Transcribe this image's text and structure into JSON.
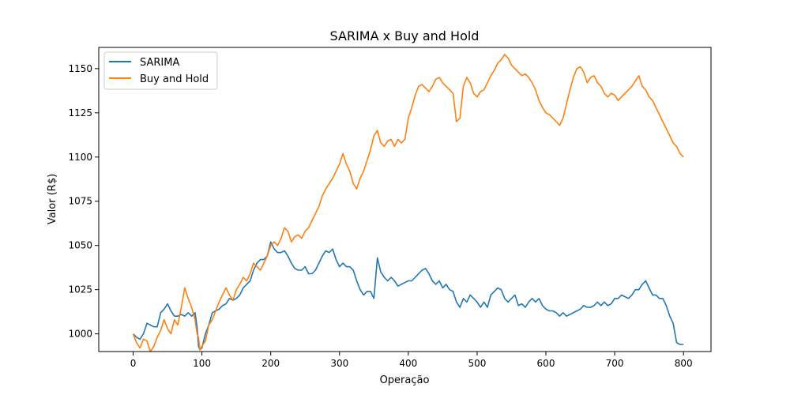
{
  "chart_data": {
    "type": "line",
    "title": "SARIMA x Buy and Hold",
    "xlabel": "Operação",
    "ylabel": "Valor (R$)",
    "xlim": [
      -50,
      840
    ],
    "ylim": [
      990,
      1162
    ],
    "xticks": [
      0,
      100,
      200,
      300,
      400,
      500,
      600,
      700,
      800
    ],
    "yticks": [
      1000,
      1025,
      1050,
      1075,
      1100,
      1125,
      1150
    ],
    "grid": false,
    "legend_position": "top-left",
    "series": [
      {
        "name": "SARIMA",
        "color": "#1f77b4",
        "x": [
          0,
          5,
          10,
          15,
          20,
          25,
          30,
          35,
          40,
          45,
          50,
          55,
          60,
          65,
          70,
          75,
          80,
          85,
          90,
          93,
          95,
          97,
          100,
          105,
          110,
          115,
          120,
          125,
          130,
          135,
          140,
          145,
          150,
          155,
          160,
          165,
          170,
          175,
          180,
          185,
          190,
          195,
          200,
          205,
          210,
          215,
          220,
          225,
          230,
          235,
          240,
          245,
          250,
          255,
          260,
          265,
          270,
          275,
          280,
          285,
          290,
          295,
          300,
          305,
          310,
          315,
          320,
          325,
          330,
          335,
          340,
          345,
          350,
          355,
          360,
          365,
          370,
          375,
          380,
          385,
          390,
          395,
          400,
          405,
          410,
          415,
          420,
          425,
          430,
          435,
          440,
          445,
          450,
          455,
          460,
          465,
          470,
          475,
          480,
          485,
          490,
          495,
          500,
          505,
          510,
          515,
          520,
          525,
          530,
          535,
          540,
          545,
          550,
          555,
          560,
          565,
          570,
          575,
          580,
          585,
          590,
          595,
          600,
          605,
          610,
          615,
          620,
          625,
          630,
          635,
          640,
          645,
          650,
          655,
          660,
          665,
          670,
          675,
          680,
          685,
          690,
          695,
          700,
          705,
          710,
          715,
          720,
          725,
          730,
          735,
          740,
          745,
          750,
          755,
          760,
          765,
          770,
          775,
          780,
          785,
          790,
          795,
          800
        ],
        "values": [
          1000,
          998,
          997,
          1000,
          1006,
          1005,
          1004,
          1004,
          1012,
          1014,
          1017,
          1013,
          1010,
          1010,
          1011,
          1010,
          1012,
          1010,
          1012,
          1004,
          993,
          991,
          992,
          1000,
          1005,
          1012,
          1013,
          1014,
          1016,
          1017,
          1020,
          1019,
          1020,
          1022,
          1026,
          1028,
          1030,
          1036,
          1040,
          1042,
          1042,
          1044,
          1052,
          1048,
          1046,
          1046,
          1047,
          1044,
          1040,
          1037,
          1036,
          1036,
          1038,
          1034,
          1034,
          1036,
          1040,
          1044,
          1047,
          1046,
          1048,
          1042,
          1038,
          1040,
          1038,
          1038,
          1036,
          1030,
          1025,
          1022,
          1024,
          1024,
          1020,
          1043,
          1035,
          1032,
          1030,
          1032,
          1030,
          1027,
          1028,
          1029,
          1030,
          1030,
          1032,
          1034,
          1036,
          1037,
          1034,
          1030,
          1028,
          1030,
          1026,
          1028,
          1025,
          1024,
          1018,
          1015,
          1020,
          1018,
          1022,
          1020,
          1018,
          1015,
          1018,
          1015,
          1022,
          1024,
          1026,
          1025,
          1020,
          1018,
          1020,
          1022,
          1016,
          1017,
          1015,
          1018,
          1020,
          1018,
          1020,
          1016,
          1014,
          1013,
          1013,
          1012,
          1010,
          1012,
          1010,
          1011,
          1012,
          1013,
          1014,
          1016,
          1015,
          1015,
          1016,
          1018,
          1016,
          1018,
          1016,
          1017,
          1020,
          1020,
          1022,
          1021,
          1020,
          1022,
          1025,
          1025,
          1028,
          1030,
          1026,
          1022,
          1022,
          1020,
          1020,
          1016,
          1010,
          1006,
          995,
          994,
          994
        ]
      },
      {
        "name": "Buy and Hold",
        "color": "#ff7f0e",
        "x": [
          0,
          5,
          10,
          15,
          20,
          25,
          30,
          35,
          40,
          45,
          50,
          55,
          60,
          65,
          70,
          75,
          80,
          85,
          90,
          93,
          95,
          97,
          100,
          105,
          110,
          115,
          120,
          125,
          130,
          135,
          140,
          145,
          150,
          155,
          160,
          165,
          170,
          175,
          180,
          185,
          190,
          195,
          200,
          205,
          210,
          215,
          220,
          225,
          230,
          235,
          240,
          245,
          250,
          255,
          260,
          265,
          270,
          275,
          280,
          285,
          290,
          295,
          300,
          305,
          310,
          315,
          320,
          325,
          330,
          335,
          340,
          345,
          350,
          355,
          360,
          365,
          370,
          375,
          380,
          385,
          390,
          395,
          400,
          405,
          410,
          415,
          420,
          425,
          430,
          435,
          440,
          445,
          450,
          455,
          460,
          465,
          470,
          475,
          480,
          485,
          490,
          495,
          500,
          505,
          510,
          515,
          520,
          525,
          530,
          535,
          540,
          545,
          550,
          555,
          560,
          565,
          570,
          575,
          580,
          585,
          590,
          595,
          600,
          605,
          610,
          615,
          620,
          625,
          630,
          635,
          640,
          645,
          650,
          655,
          660,
          665,
          670,
          675,
          680,
          685,
          690,
          695,
          700,
          705,
          710,
          715,
          720,
          725,
          730,
          735,
          740,
          745,
          750,
          755,
          760,
          765,
          770,
          775,
          780,
          785,
          790,
          795,
          800
        ],
        "values": [
          1000,
          995,
          992,
          997,
          996,
          990,
          993,
          998,
          1002,
          1008,
          1003,
          1000,
          1008,
          1005,
          1015,
          1026,
          1020,
          1015,
          1008,
          1000,
          998,
          991,
          993,
          996,
          1005,
          1008,
          1013,
          1018,
          1022,
          1026,
          1022,
          1019,
          1025,
          1028,
          1032,
          1030,
          1034,
          1040,
          1038,
          1036,
          1040,
          1044,
          1050,
          1052,
          1050,
          1054,
          1060,
          1058,
          1052,
          1055,
          1056,
          1054,
          1058,
          1060,
          1064,
          1068,
          1072,
          1078,
          1082,
          1085,
          1088,
          1092,
          1096,
          1102,
          1096,
          1092,
          1085,
          1082,
          1088,
          1092,
          1098,
          1104,
          1112,
          1115,
          1108,
          1106,
          1109,
          1110,
          1106,
          1110,
          1108,
          1110,
          1122,
          1128,
          1135,
          1140,
          1141,
          1139,
          1137,
          1140,
          1144,
          1145,
          1142,
          1140,
          1138,
          1136,
          1120,
          1122,
          1140,
          1145,
          1142,
          1136,
          1134,
          1137,
          1138,
          1142,
          1146,
          1149,
          1153,
          1155,
          1158,
          1156,
          1152,
          1150,
          1148,
          1146,
          1147,
          1145,
          1142,
          1138,
          1132,
          1128,
          1125,
          1124,
          1122,
          1120,
          1118,
          1122,
          1130,
          1138,
          1145,
          1150,
          1151,
          1148,
          1142,
          1145,
          1146,
          1142,
          1140,
          1136,
          1134,
          1136,
          1135,
          1132,
          1134,
          1136,
          1138,
          1140,
          1143,
          1146,
          1140,
          1138,
          1134,
          1132,
          1128,
          1124,
          1120,
          1116,
          1112,
          1108,
          1106,
          1102,
          1100
        ]
      }
    ]
  }
}
